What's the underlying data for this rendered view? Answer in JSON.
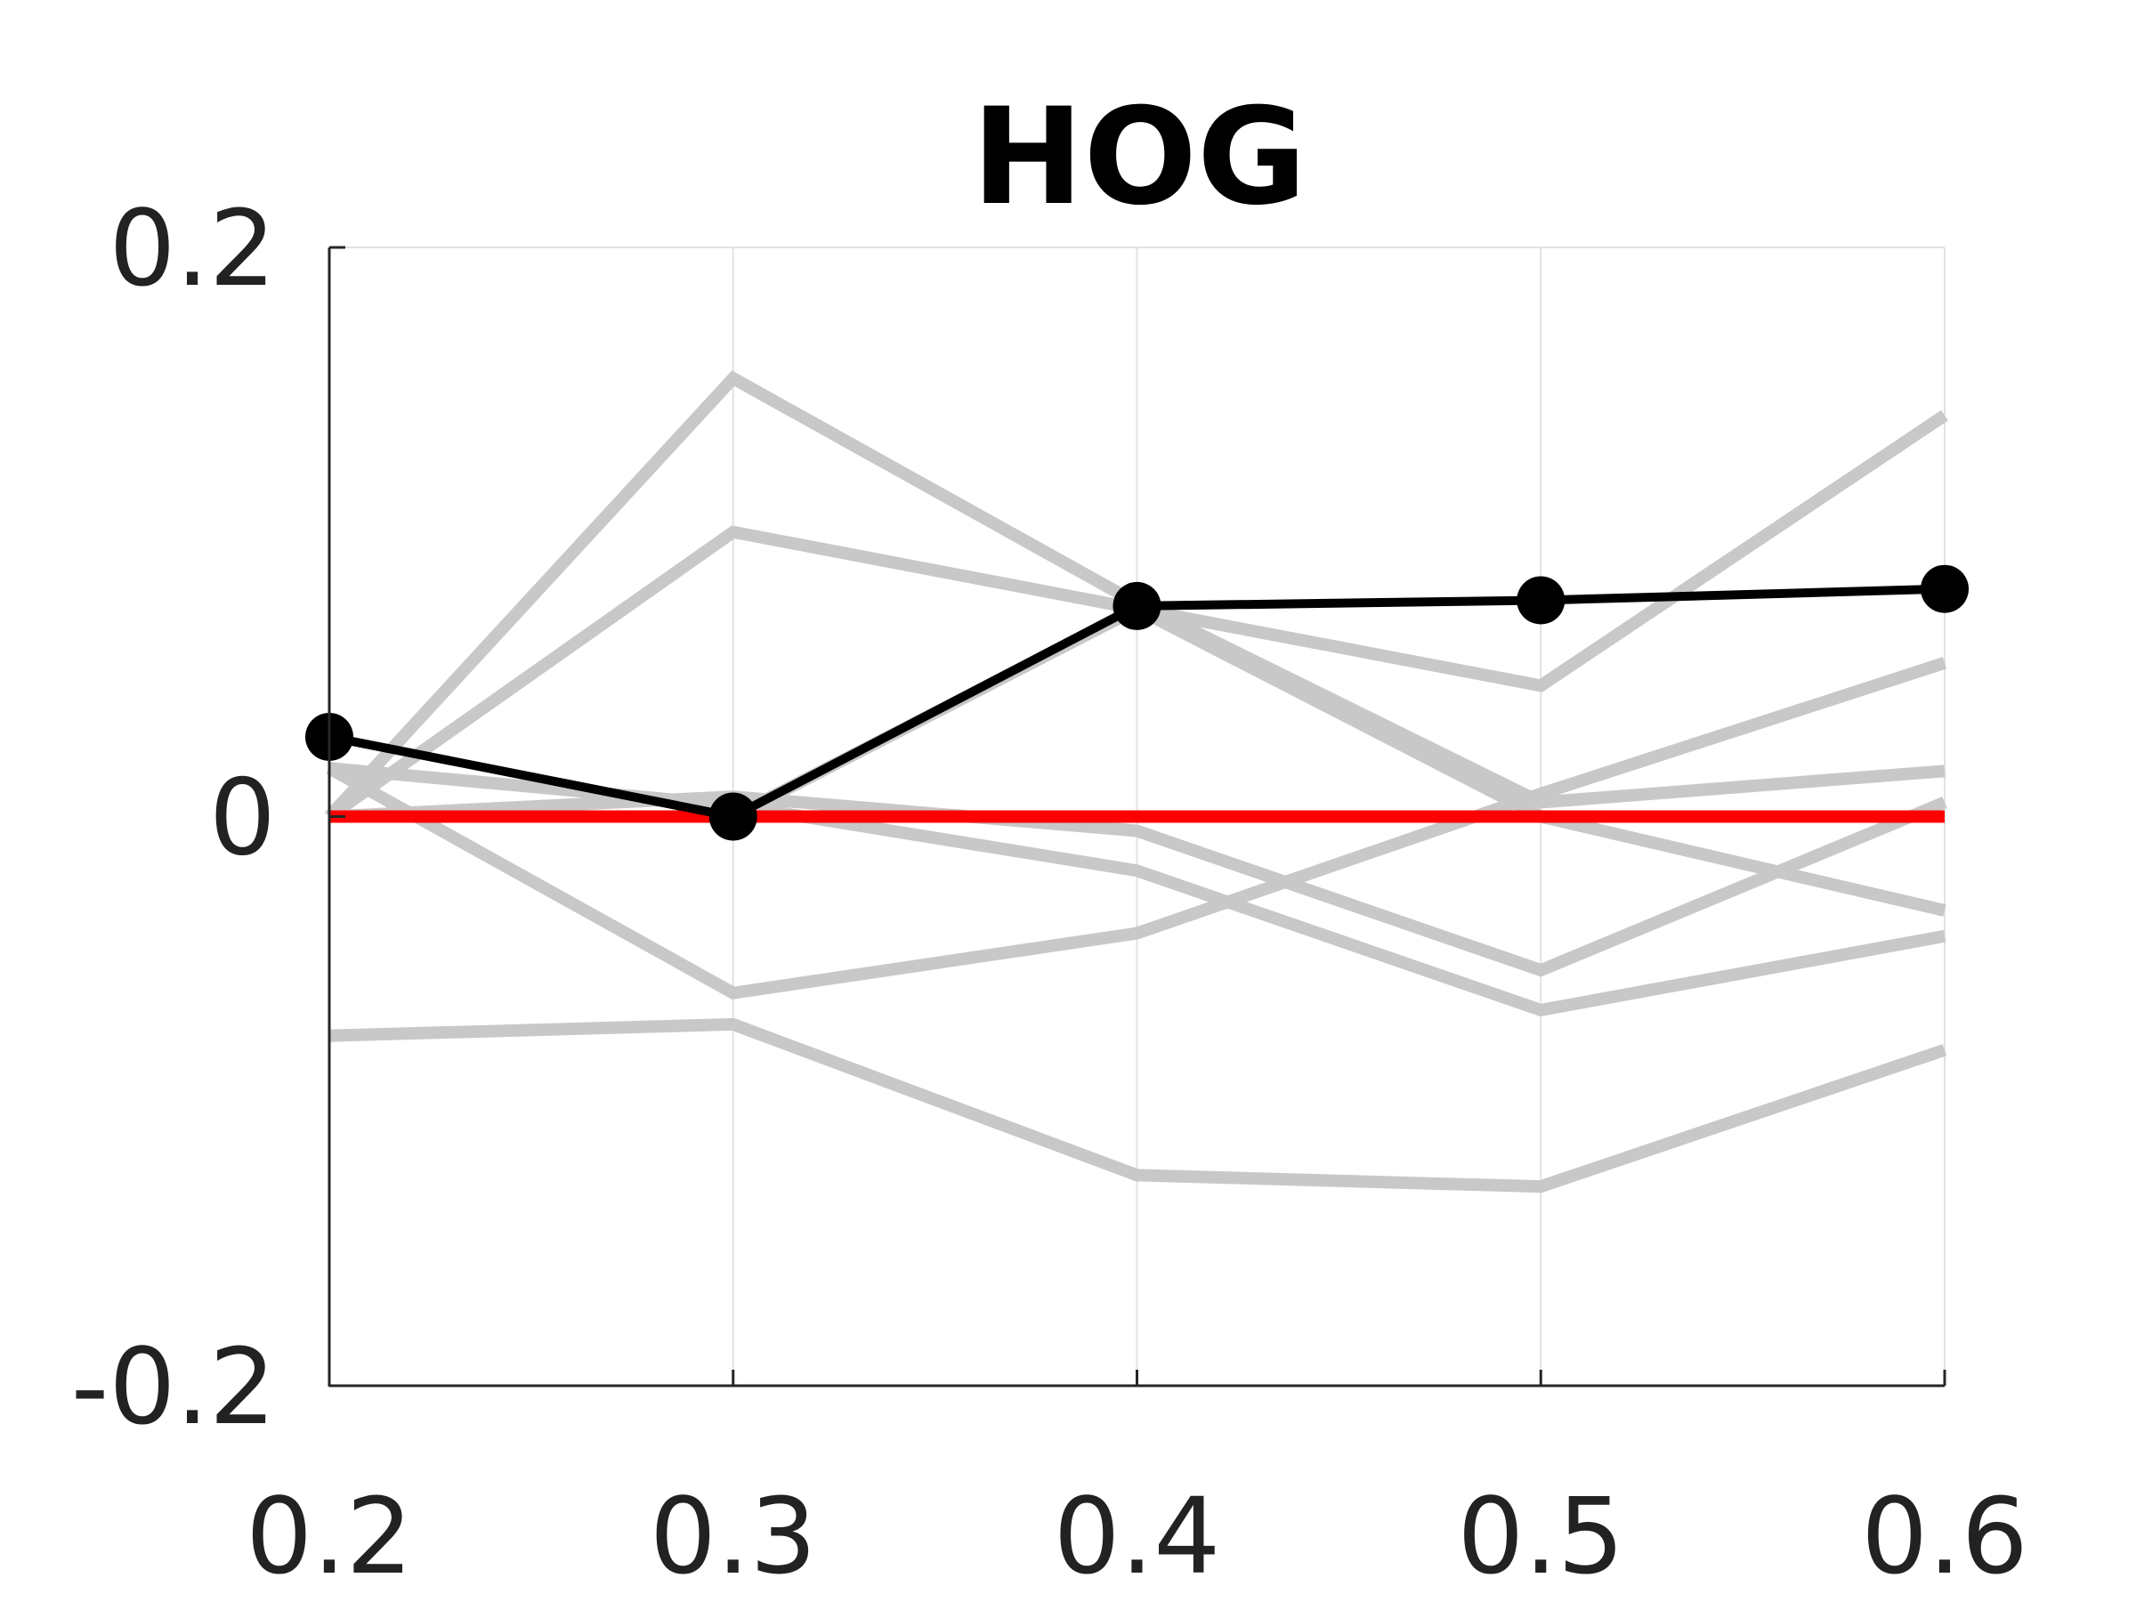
{
  "chart_data": {
    "type": "line",
    "title": "HOG",
    "xlabel": "",
    "ylabel": "",
    "x": [
      0.2,
      0.3,
      0.4,
      0.5,
      0.6
    ],
    "x_tick_labels": [
      "0.2",
      "0.3",
      "0.4",
      "0.5",
      "0.6"
    ],
    "y_tick_values": [
      -0.2,
      0,
      0.2
    ],
    "y_tick_labels": [
      "-0.2",
      "0",
      "0.2"
    ],
    "xlim": [
      0.2,
      0.6
    ],
    "ylim": [
      -0.2,
      0.2
    ],
    "grid": "vertical",
    "legend": "none",
    "background_series": [
      {
        "values": [
          0.0,
          0.154,
          0.075,
          0.005,
          0.016
        ]
      },
      {
        "values": [
          0.0,
          0.1,
          0.073,
          0.046,
          0.141
        ]
      },
      {
        "values": [
          0.0,
          0.007,
          -0.005,
          -0.054,
          0.005
        ]
      },
      {
        "values": [
          0.017,
          0.004,
          -0.019,
          -0.068,
          -0.042
        ]
      },
      {
        "values": [
          0.017,
          -0.062,
          -0.041,
          0.008,
          0.054
        ]
      },
      {
        "values": [
          -0.077,
          -0.073,
          -0.126,
          -0.13,
          -0.082
        ]
      },
      {
        "values": [
          0.0,
          0.0,
          0.073,
          0.0,
          -0.033
        ]
      }
    ],
    "main_series": {
      "values": [
        0.028,
        0.0,
        0.074,
        0.076,
        0.08
      ]
    },
    "reference_line": {
      "y": 0
    },
    "colors": {
      "background_series": "#c8c8c8",
      "main_series": "#000000",
      "reference_line": "#ff0000",
      "grid": "#e2e2e2",
      "axis": "#262626"
    }
  }
}
